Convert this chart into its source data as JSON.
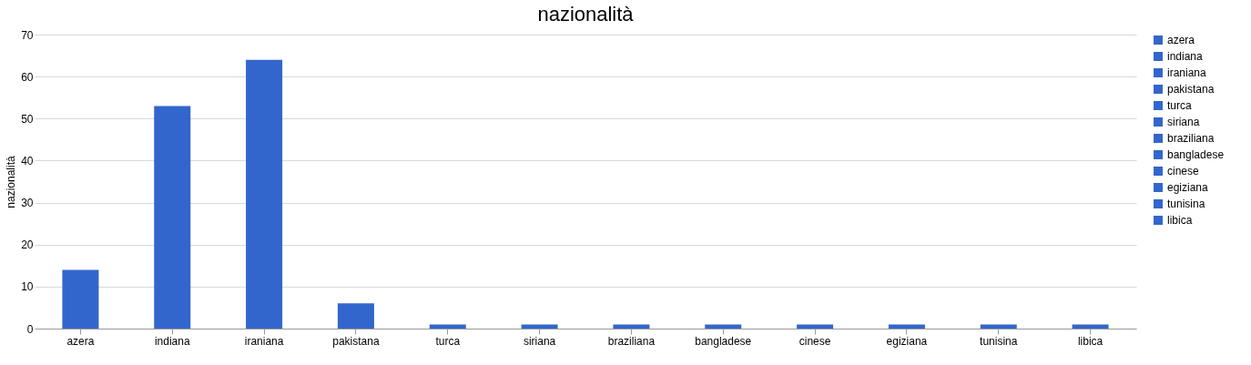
{
  "chart_data": {
    "type": "bar",
    "title": "nazionalità",
    "ylabel": "nazionalità",
    "categories": [
      "azera",
      "indiana",
      "iraniana",
      "pakistana",
      "turca",
      "siriana",
      "braziliana",
      "bangladese",
      "cinese",
      "egiziana",
      "tunisina",
      "libica"
    ],
    "series": [
      {
        "name": "azera",
        "color": "#3366cc",
        "values": [
          14,
          null,
          null,
          null,
          null,
          null,
          null,
          null,
          null,
          null,
          null,
          null
        ]
      },
      {
        "name": "indiana",
        "color": "#3366cc",
        "values": [
          null,
          53,
          null,
          null,
          null,
          null,
          null,
          null,
          null,
          null,
          null,
          null
        ]
      },
      {
        "name": "iraniana",
        "color": "#3366cc",
        "values": [
          null,
          null,
          64,
          null,
          null,
          null,
          null,
          null,
          null,
          null,
          null,
          null
        ]
      },
      {
        "name": "pakistana",
        "color": "#3366cc",
        "values": [
          null,
          null,
          null,
          6,
          null,
          null,
          null,
          null,
          null,
          null,
          null,
          null
        ]
      },
      {
        "name": "turca",
        "color": "#3366cc",
        "values": [
          null,
          null,
          null,
          null,
          1,
          null,
          null,
          null,
          null,
          null,
          null,
          null
        ]
      },
      {
        "name": "siriana",
        "color": "#3366cc",
        "values": [
          null,
          null,
          null,
          null,
          null,
          1,
          null,
          null,
          null,
          null,
          null,
          null
        ]
      },
      {
        "name": "braziliana",
        "color": "#3366cc",
        "values": [
          null,
          null,
          null,
          null,
          null,
          null,
          1,
          null,
          null,
          null,
          null,
          null
        ]
      },
      {
        "name": "bangladese",
        "color": "#3366cc",
        "values": [
          null,
          null,
          null,
          null,
          null,
          null,
          null,
          1,
          null,
          null,
          null,
          null
        ]
      },
      {
        "name": "cinese",
        "color": "#3366cc",
        "values": [
          null,
          null,
          null,
          null,
          null,
          null,
          null,
          null,
          1,
          null,
          null,
          null
        ]
      },
      {
        "name": "egiziana",
        "color": "#3366cc",
        "values": [
          null,
          null,
          null,
          null,
          null,
          null,
          null,
          null,
          null,
          1,
          null,
          null
        ]
      },
      {
        "name": "tunisina",
        "color": "#3366cc",
        "values": [
          null,
          null,
          null,
          null,
          null,
          null,
          null,
          null,
          null,
          null,
          1,
          null
        ]
      },
      {
        "name": "libica",
        "color": "#3366cc",
        "values": [
          null,
          null,
          null,
          null,
          null,
          null,
          null,
          null,
          null,
          null,
          null,
          1
        ]
      }
    ],
    "ylim": [
      0,
      70
    ],
    "yticks": [
      0,
      10,
      20,
      30,
      40,
      50,
      60,
      70
    ],
    "grid": "y",
    "legend": "right"
  }
}
